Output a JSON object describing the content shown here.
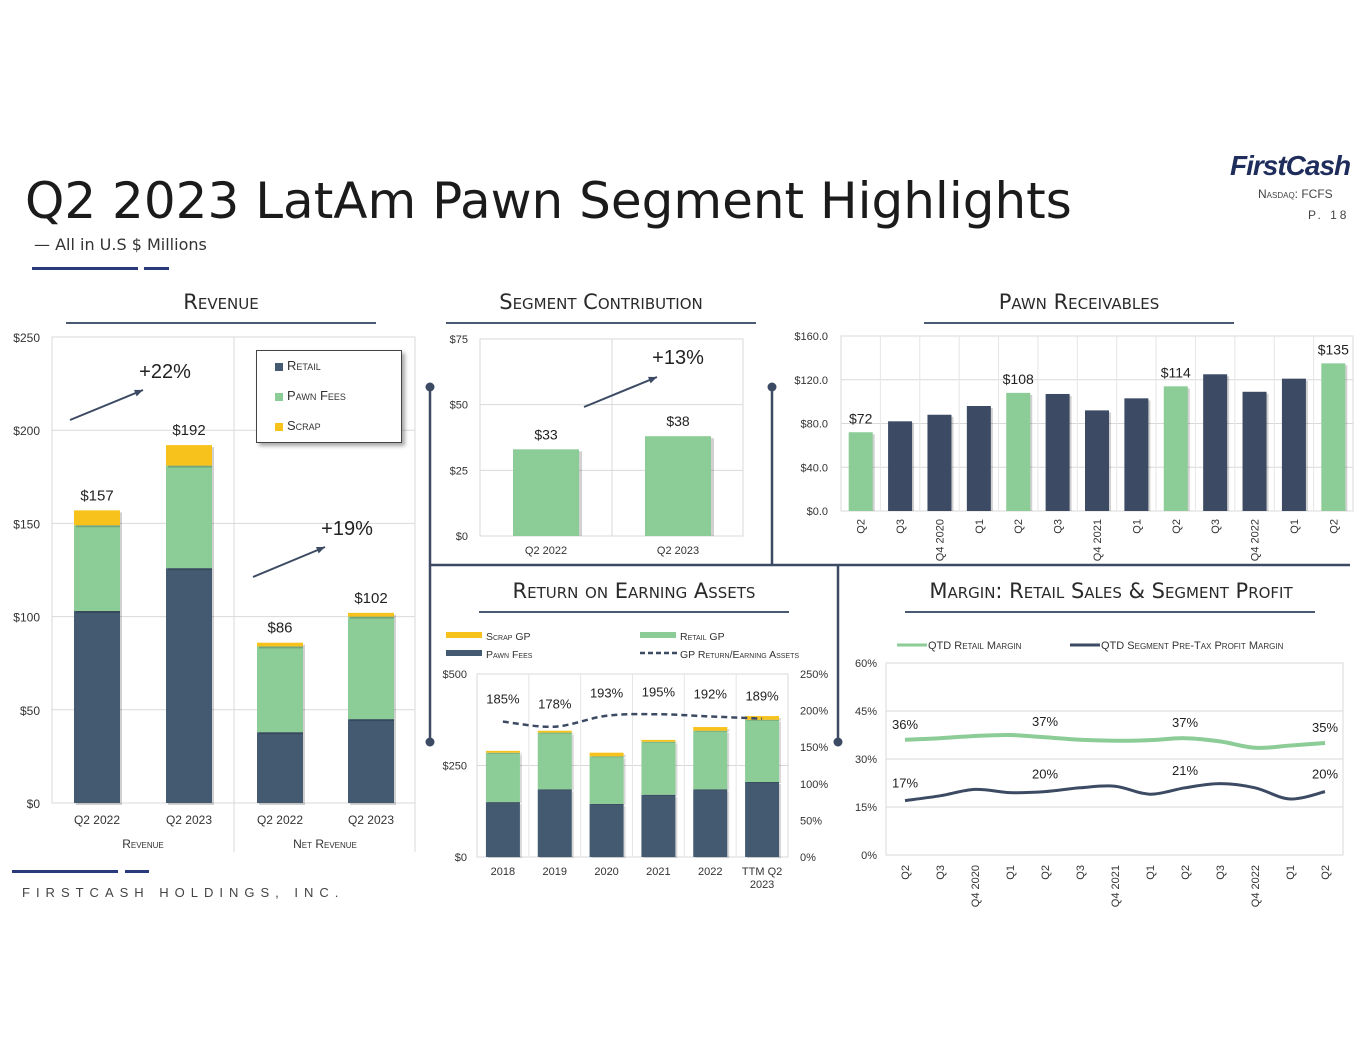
{
  "header": {
    "title": "Q2 2023 LatAm Pawn Segment Highlights",
    "subtitle": "— All in U.S $ Millions",
    "brand": "FirstCash",
    "ticker": "Nasdaq: FCFS",
    "page": "P. 18"
  },
  "footer": {
    "company": "FIRSTCASH HOLDINGS, INC."
  },
  "colors": {
    "retail": "#435a71",
    "pawn_fees": "#8ccc96",
    "scrap": "#f8c21c",
    "navy": "#3c4b63",
    "green": "#8ccc96"
  },
  "sections": {
    "revenue": "Revenue",
    "segment": "Segment Contribution",
    "receivables": "Pawn Receivables",
    "roea": "Return on Earning Assets",
    "margin": "Margin: Retail Sales & Segment Profit"
  },
  "revenue_legend": {
    "retail": "Retail",
    "pawn_fees": "Pawn Fees",
    "scrap": "Scrap"
  },
  "chart_data": [
    {
      "id": "revenue",
      "type": "bar",
      "title": "Revenue",
      "categories": [
        "Q2 2022",
        "Q2 2023",
        "Q2 2022",
        "Q2 2023"
      ],
      "groups": [
        "Revenue",
        "Net Revenue"
      ],
      "series": [
        {
          "name": "Retail",
          "values": [
            103,
            126,
            38,
            45
          ]
        },
        {
          "name": "Pawn Fees",
          "values": [
            46,
            55,
            46,
            55
          ]
        },
        {
          "name": "Scrap",
          "values": [
            8,
            11,
            2,
            2
          ]
        }
      ],
      "totals": [
        "$157",
        "$192",
        "$86",
        "$102"
      ],
      "growth": [
        "+22%",
        "+19%"
      ],
      "y_ticks": [
        "$0",
        "$50",
        "$100",
        "$150",
        "$200",
        "$250"
      ],
      "ylim": [
        0,
        250
      ]
    },
    {
      "id": "segment",
      "type": "bar",
      "title": "Segment Contribution",
      "categories": [
        "Q2 2022",
        "Q2 2023"
      ],
      "values": [
        33,
        38
      ],
      "labels": [
        "$33",
        "$38"
      ],
      "growth": "+13%",
      "y_ticks": [
        "$0",
        "$25",
        "$50",
        "$75"
      ],
      "ylim": [
        0,
        75
      ]
    },
    {
      "id": "receivables",
      "type": "bar",
      "title": "Pawn Receivables",
      "categories": [
        "Q2",
        "Q3",
        "Q4 2020",
        "Q1",
        "Q2",
        "Q3",
        "Q4 2021",
        "Q1",
        "Q2",
        "Q3",
        "Q4 2022",
        "Q1",
        "Q2"
      ],
      "values": [
        72,
        82,
        88,
        96,
        108,
        107,
        92,
        103,
        114,
        125,
        109,
        121,
        135
      ],
      "highlight": [
        true,
        false,
        false,
        false,
        true,
        false,
        false,
        false,
        true,
        false,
        false,
        false,
        true
      ],
      "labels": [
        "$72",
        "",
        "",
        "",
        "$108",
        "",
        "",
        "",
        "$114",
        "",
        "",
        "",
        "$135"
      ],
      "y_ticks": [
        "$0.0",
        "$40.0",
        "$80.0",
        "$120.0",
        "$160.0"
      ],
      "ylim": [
        0,
        160
      ]
    },
    {
      "id": "roea",
      "type": "bar",
      "title": "Return on Earning Assets",
      "categories": [
        "2018",
        "2019",
        "2020",
        "2021",
        "2022",
        "TTM Q2 2023"
      ],
      "series": [
        {
          "name": "Pawn Fees",
          "values": [
            150,
            185,
            145,
            170,
            185,
            205
          ]
        },
        {
          "name": "Retail GP",
          "values": [
            135,
            155,
            130,
            145,
            160,
            170
          ]
        },
        {
          "name": "Scrap GP",
          "values": [
            5,
            5,
            10,
            5,
            10,
            10
          ]
        }
      ],
      "line": {
        "name": "GP Return/Earning Assets",
        "values": [
          185,
          178,
          193,
          195,
          192,
          189
        ],
        "labels": [
          "185%",
          "178%",
          "193%",
          "195%",
          "192%",
          "189%"
        ]
      },
      "legend": [
        "Scrap GP",
        "Retail GP",
        "Pawn Fees",
        "GP Return/Earning Assets"
      ],
      "y_ticks": [
        "$0",
        "$250",
        "$500"
      ],
      "y2_ticks": [
        "0%",
        "50%",
        "100%",
        "150%",
        "200%",
        "250%"
      ],
      "ylim": [
        0,
        500
      ],
      "y2lim": [
        0,
        250
      ]
    },
    {
      "id": "margin",
      "type": "line",
      "title": "Margin: Retail Sales & Segment Profit",
      "categories": [
        "Q2",
        "Q3",
        "Q4 2020",
        "Q1",
        "Q2",
        "Q3",
        "Q4 2021",
        "Q1",
        "Q2",
        "Q3",
        "Q4 2022",
        "Q1",
        "Q2"
      ],
      "series": [
        {
          "name": "QTD Retail Margin",
          "values": [
            36,
            36.5,
            37.2,
            37.5,
            36.8,
            36,
            35.7,
            35.9,
            36.5,
            35.5,
            33.5,
            34.2,
            35
          ]
        },
        {
          "name": "QTD Segment Pre-Tax Profit Margin",
          "values": [
            17,
            18.5,
            20.5,
            19.5,
            19.8,
            21,
            21.5,
            19,
            21,
            22.3,
            21,
            17.5,
            19.8
          ]
        }
      ],
      "point_labels": {
        "retail": [
          "36%",
          "",
          "",
          "",
          "37%",
          "",
          "",
          "",
          "37%",
          "",
          "",
          "",
          "35%"
        ],
        "profit": [
          "17%",
          "",
          "",
          "",
          "20%",
          "",
          "",
          "",
          "21%",
          "",
          "",
          "",
          "20%"
        ]
      },
      "y_ticks": [
        "0%",
        "15%",
        "30%",
        "45%",
        "60%"
      ],
      "ylim": [
        0,
        60
      ]
    }
  ]
}
